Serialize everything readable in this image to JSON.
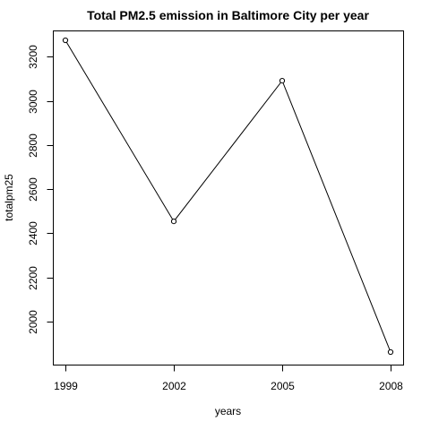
{
  "chart_data": {
    "type": "line",
    "title": "Total PM2.5 emission in Baltimore City per year",
    "xlabel": "years",
    "ylabel": "totalpm25",
    "x": [
      1999,
      2002,
      2005,
      2008
    ],
    "x_tick_labels": [
      "1999",
      "2002",
      "2005",
      "2008"
    ],
    "series": [
      {
        "values": [
          3274,
          2454,
          3091,
          1862
        ]
      }
    ],
    "y_ticks": [
      2000,
      2200,
      2400,
      2600,
      2800,
      3000,
      3200
    ],
    "y_tick_labels": [
      "2000",
      "2200",
      "2400",
      "2600",
      "2800",
      "3000",
      "3200"
    ],
    "xlim": [
      1999,
      2008
    ],
    "ylim": [
      1862,
      3274
    ],
    "grid": false,
    "markers": "open-circle",
    "line_color": "#000000"
  }
}
